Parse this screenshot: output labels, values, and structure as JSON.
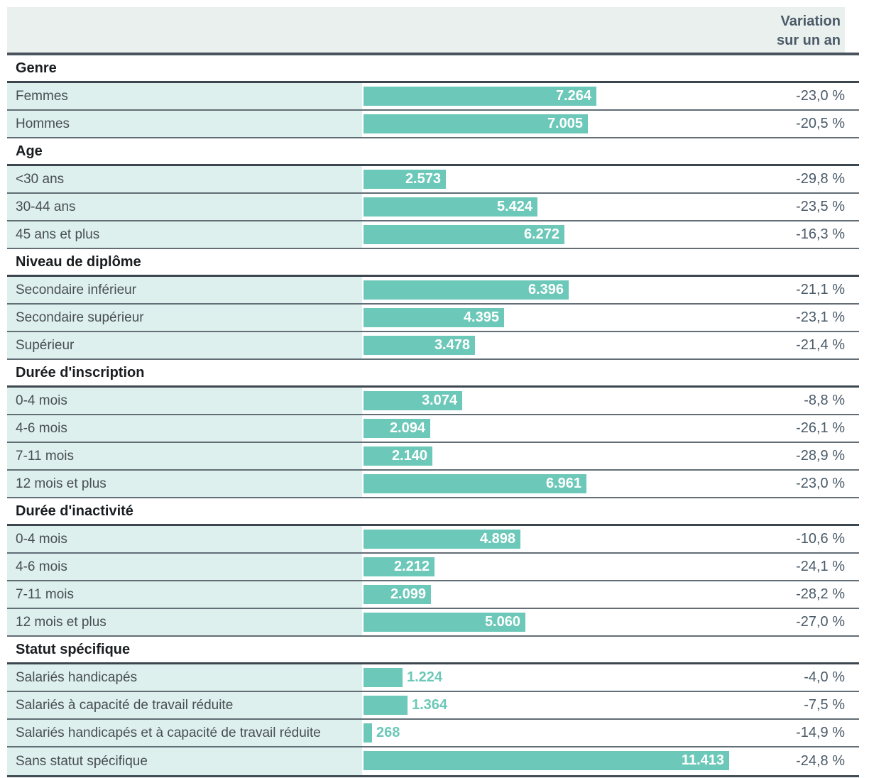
{
  "header": {
    "variation_line1": "Variation",
    "variation_line2": "sur un an"
  },
  "colors": {
    "bar": "#6cc8b8",
    "row_label_background": "#def0ed",
    "header_background": "#eaf0ee",
    "value_inside_text": "#ffffff",
    "value_outside_text": "#6cc8b8",
    "variation_text": "#4a5a68",
    "row_label_text": "#474e53",
    "section_title_text": "#191d20"
  },
  "sections": [
    {
      "title": "Genre",
      "rows": [
        {
          "label": "Femmes",
          "value": 7264,
          "value_label": "7.264",
          "variation": "-23,0 %"
        },
        {
          "label": "Hommes",
          "value": 7005,
          "value_label": "7.005",
          "variation": "-20,5 %"
        }
      ]
    },
    {
      "title": "Age",
      "rows": [
        {
          "label": "<30 ans",
          "value": 2573,
          "value_label": "2.573",
          "variation": "-29,8 %"
        },
        {
          "label": "30-44 ans",
          "value": 5424,
          "value_label": "5.424",
          "variation": "-23,5 %"
        },
        {
          "label": "45 ans et plus",
          "value": 6272,
          "value_label": "6.272",
          "variation": "-16,3 %"
        }
      ]
    },
    {
      "title": "Niveau de diplôme",
      "rows": [
        {
          "label": "Secondaire inférieur",
          "value": 6396,
          "value_label": "6.396",
          "variation": "-21,1 %"
        },
        {
          "label": "Secondaire supérieur",
          "value": 4395,
          "value_label": "4.395",
          "variation": "-23,1 %"
        },
        {
          "label": "Supérieur",
          "value": 3478,
          "value_label": "3.478",
          "variation": "-21,4 %"
        }
      ]
    },
    {
      "title": "Durée d'inscription",
      "rows": [
        {
          "label": "0-4 mois",
          "value": 3074,
          "value_label": "3.074",
          "variation": "-8,8 %"
        },
        {
          "label": "4-6 mois",
          "value": 2094,
          "value_label": "2.094",
          "variation": "-26,1 %"
        },
        {
          "label": "7-11 mois",
          "value": 2140,
          "value_label": "2.140",
          "variation": "-28,9 %"
        },
        {
          "label": "12 mois et plus",
          "value": 6961,
          "value_label": "6.961",
          "variation": "-23,0 %"
        }
      ]
    },
    {
      "title": "Durée d'inactivité",
      "rows": [
        {
          "label": "0-4 mois",
          "value": 4898,
          "value_label": "4.898",
          "variation": "-10,6 %"
        },
        {
          "label": "4-6 mois",
          "value": 2212,
          "value_label": "2.212",
          "variation": "-24,1 %"
        },
        {
          "label": "7-11 mois",
          "value": 2099,
          "value_label": "2.099",
          "variation": "-28,2 %"
        },
        {
          "label": "12 mois et plus",
          "value": 5060,
          "value_label": "5.060",
          "variation": "-27,0 %"
        }
      ]
    },
    {
      "title": "Statut spécifique",
      "rows": [
        {
          "label": "Salariés handicapés",
          "value": 1224,
          "value_label": "1.224",
          "variation": "-4,0 %"
        },
        {
          "label": "Salariés à capacité de travail réduite",
          "value": 1364,
          "value_label": "1.364",
          "variation": "-7,5 %"
        },
        {
          "label": "Salariés handicapés et à capacité de travail réduite",
          "value": 268,
          "value_label": "268",
          "variation": "-14,9 %"
        },
        {
          "label": "Sans statut spécifique",
          "value": 11413,
          "value_label": "11.413",
          "variation": "-24,8 %"
        }
      ]
    }
  ],
  "chart_data": {
    "type": "bar",
    "orientation": "horizontal",
    "column_header": "Variation sur un an",
    "xlim": [
      0,
      11413
    ],
    "grid": false,
    "value_format": "thousands separated by period, e.g. 7.264",
    "groups": [
      {
        "group": "Genre",
        "categories": [
          "Femmes",
          "Hommes"
        ],
        "values": [
          7264,
          7005
        ],
        "variation_pct": [
          -23.0,
          -20.5
        ]
      },
      {
        "group": "Age",
        "categories": [
          "<30 ans",
          "30-44 ans",
          "45 ans et plus"
        ],
        "values": [
          2573,
          5424,
          6272
        ],
        "variation_pct": [
          -29.8,
          -23.5,
          -16.3
        ]
      },
      {
        "group": "Niveau de diplôme",
        "categories": [
          "Secondaire inférieur",
          "Secondaire supérieur",
          "Supérieur"
        ],
        "values": [
          6396,
          4395,
          3478
        ],
        "variation_pct": [
          -21.1,
          -23.1,
          -21.4
        ]
      },
      {
        "group": "Durée d'inscription",
        "categories": [
          "0-4 mois",
          "4-6 mois",
          "7-11 mois",
          "12 mois et plus"
        ],
        "values": [
          3074,
          2094,
          2140,
          6961
        ],
        "variation_pct": [
          -8.8,
          -26.1,
          -28.9,
          -23.0
        ]
      },
      {
        "group": "Durée d'inactivité",
        "categories": [
          "0-4 mois",
          "4-6 mois",
          "7-11 mois",
          "12 mois et plus"
        ],
        "values": [
          4898,
          2212,
          2099,
          5060
        ],
        "variation_pct": [
          -10.6,
          -24.1,
          -28.2,
          -27.0
        ]
      },
      {
        "group": "Statut spécifique",
        "categories": [
          "Salariés handicapés",
          "Salariés à capacité de travail réduite",
          "Salariés handicapés et à capacité de travail réduite",
          "Sans statut spécifique"
        ],
        "values": [
          1224,
          1364,
          268,
          11413
        ],
        "variation_pct": [
          -4.0,
          -7.5,
          -14.9,
          -24.8
        ]
      }
    ]
  }
}
